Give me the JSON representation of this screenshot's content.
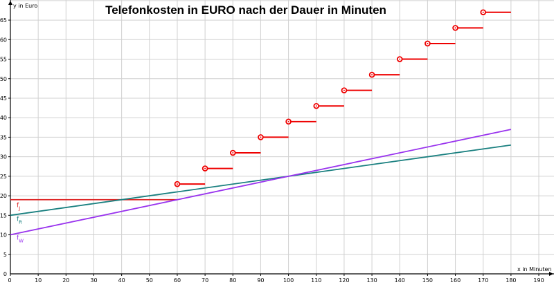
{
  "chart_data": {
    "type": "line",
    "title": "Telefonkosten in EURO nach der Dauer in Minuten",
    "xlabel": "x in Minuten",
    "ylabel": "y in Euro",
    "xlim": [
      0,
      195
    ],
    "ylim": [
      0,
      70
    ],
    "x_ticks": [
      0,
      10,
      20,
      30,
      40,
      50,
      60,
      70,
      80,
      90,
      100,
      110,
      120,
      130,
      140,
      150,
      160,
      170,
      180,
      190
    ],
    "y_ticks": [
      0,
      5,
      10,
      15,
      20,
      25,
      30,
      35,
      40,
      45,
      50,
      55,
      60,
      65
    ],
    "grid": true,
    "series": [
      {
        "name": "f_J",
        "label_main": "f",
        "label_sub": "J",
        "color": "#dd2222",
        "kind": "constant",
        "value": 19,
        "x_range": [
          0,
          60
        ]
      },
      {
        "name": "f_R",
        "label_main": "f",
        "label_sub": "R",
        "color": "#1a8080",
        "kind": "line",
        "points": [
          [
            0,
            15
          ],
          [
            180,
            33
          ]
        ]
      },
      {
        "name": "f_W",
        "label_main": "f",
        "label_sub": "W",
        "color": "#9933ee",
        "kind": "line",
        "points": [
          [
            0,
            10
          ],
          [
            180,
            37
          ]
        ]
      },
      {
        "name": "f_J steps",
        "color": "#ee0000",
        "kind": "step",
        "steps": [
          {
            "x_start": 60,
            "x_end": 70,
            "y": 23
          },
          {
            "x_start": 70,
            "x_end": 80,
            "y": 27
          },
          {
            "x_start": 80,
            "x_end": 90,
            "y": 31
          },
          {
            "x_start": 90,
            "x_end": 100,
            "y": 35
          },
          {
            "x_start": 100,
            "x_end": 110,
            "y": 39
          },
          {
            "x_start": 110,
            "x_end": 120,
            "y": 43
          },
          {
            "x_start": 120,
            "x_end": 130,
            "y": 47
          },
          {
            "x_start": 130,
            "x_end": 140,
            "y": 51
          },
          {
            "x_start": 140,
            "x_end": 150,
            "y": 55
          },
          {
            "x_start": 150,
            "x_end": 160,
            "y": 59
          },
          {
            "x_start": 160,
            "x_end": 170,
            "y": 63
          },
          {
            "x_start": 170,
            "x_end": 180,
            "y": 67
          }
        ]
      }
    ]
  }
}
